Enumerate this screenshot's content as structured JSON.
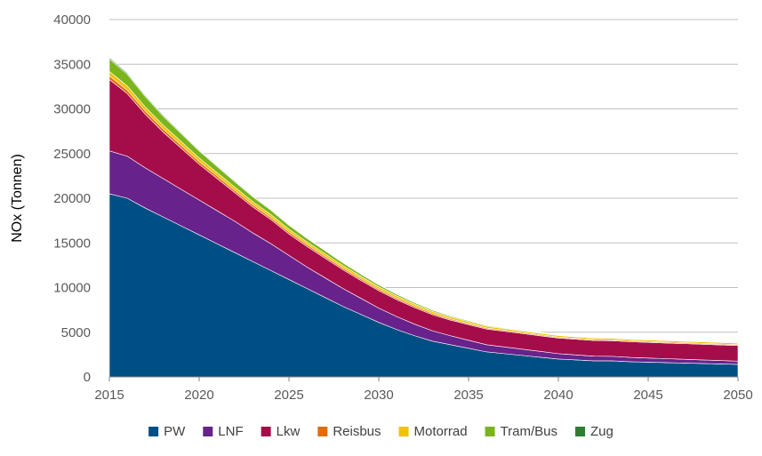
{
  "chart_data": {
    "type": "area",
    "stacked": true,
    "title": "",
    "xlabel": "",
    "ylabel": "NOx (Tonnen)",
    "xlim": [
      2015,
      2050
    ],
    "ylim": [
      0,
      40000
    ],
    "x_ticks": [
      2015,
      2020,
      2025,
      2030,
      2035,
      2040,
      2045,
      2050
    ],
    "y_ticks": [
      0,
      5000,
      10000,
      15000,
      20000,
      25000,
      30000,
      35000,
      40000
    ],
    "y_tick_labels": [
      "0",
      "5000",
      "10000",
      "15000",
      "20000",
      "25000",
      "30000",
      "35000",
      "40000"
    ],
    "grid": true,
    "legend_position": "bottom",
    "x": [
      2015,
      2016,
      2017,
      2018,
      2019,
      2020,
      2021,
      2022,
      2023,
      2024,
      2025,
      2026,
      2027,
      2028,
      2029,
      2030,
      2031,
      2032,
      2033,
      2034,
      2035,
      2036,
      2037,
      2038,
      2039,
      2040,
      2041,
      2042,
      2043,
      2044,
      2045,
      2046,
      2047,
      2048,
      2049,
      2050
    ],
    "series": [
      {
        "name": "PW",
        "color": "#004f84",
        "values": [
          20500,
          20000,
          18900,
          17900,
          16900,
          15900,
          14900,
          13900,
          12900,
          11900,
          10900,
          9900,
          8900,
          7900,
          7000,
          6100,
          5300,
          4600,
          4000,
          3600,
          3200,
          2800,
          2600,
          2400,
          2200,
          2000,
          1900,
          1800,
          1800,
          1700,
          1650,
          1600,
          1550,
          1500,
          1450,
          1400
        ]
      },
      {
        "name": "LNF",
        "color": "#68228b",
        "values": [
          4800,
          4700,
          4500,
          4300,
          4100,
          3900,
          3700,
          3500,
          3200,
          3000,
          2700,
          2400,
          2200,
          2000,
          1800,
          1600,
          1450,
          1300,
          1150,
          1000,
          900,
          800,
          750,
          700,
          650,
          600,
          560,
          520,
          500,
          480,
          460,
          440,
          420,
          400,
          380,
          360
        ]
      },
      {
        "name": "Lkw",
        "color": "#a50d4a",
        "values": [
          8000,
          7000,
          6000,
          5200,
          4600,
          4000,
          3600,
          3200,
          2900,
          2700,
          2400,
          2300,
          2200,
          2100,
          2000,
          1950,
          1900,
          1850,
          1800,
          1750,
          1750,
          1750,
          1750,
          1750,
          1750,
          1750,
          1750,
          1750,
          1750,
          1750,
          1750,
          1750,
          1750,
          1750,
          1750,
          1750
        ]
      },
      {
        "name": "Reisbus",
        "color": "#e36c0a",
        "values": [
          400,
          380,
          360,
          340,
          320,
          300,
          280,
          260,
          250,
          240,
          230,
          220,
          210,
          200,
          190,
          180,
          170,
          160,
          150,
          140,
          130,
          120,
          115,
          110,
          105,
          100,
          100,
          100,
          100,
          100,
          100,
          100,
          100,
          100,
          100,
          100
        ]
      },
      {
        "name": "Motorrad",
        "color": "#f2c200",
        "values": [
          500,
          480,
          460,
          440,
          420,
          400,
          380,
          360,
          340,
          320,
          300,
          290,
          280,
          270,
          260,
          250,
          240,
          230,
          220,
          210,
          200,
          190,
          185,
          180,
          175,
          170,
          170,
          170,
          170,
          170,
          170,
          170,
          170,
          170,
          170,
          170
        ]
      },
      {
        "name": "Tram/Bus",
        "color": "#7ab51d",
        "values": [
          1400,
          1300,
          1150,
          1000,
          900,
          800,
          700,
          600,
          550,
          500,
          450,
          400,
          350,
          300,
          260,
          220,
          190,
          160,
          140,
          120,
          100,
          90,
          80,
          70,
          65,
          60,
          55,
          50,
          50,
          50,
          50,
          50,
          50,
          50,
          50,
          50
        ]
      },
      {
        "name": "Zug",
        "color": "#2e7d32",
        "values": [
          150,
          140,
          130,
          120,
          110,
          100,
          95,
          90,
          85,
          80,
          75,
          70,
          65,
          60,
          55,
          50,
          50,
          50,
          50,
          50,
          50,
          50,
          50,
          50,
          50,
          50,
          50,
          50,
          50,
          50,
          50,
          50,
          50,
          50,
          50,
          50
        ]
      }
    ]
  }
}
